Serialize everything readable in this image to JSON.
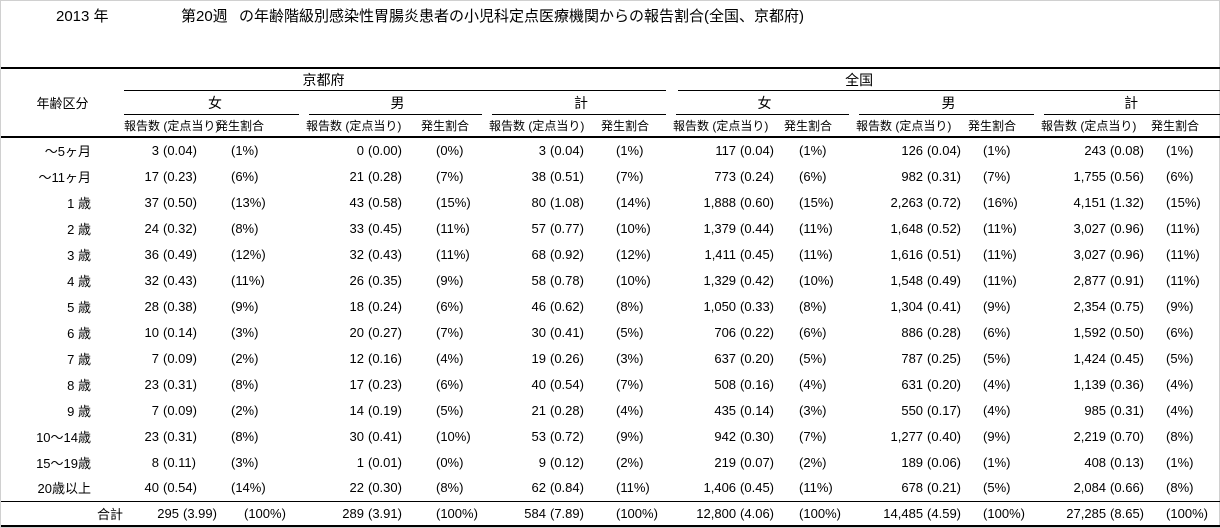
{
  "page": {
    "title": {
      "year": "2013 年",
      "week": "第20週",
      "description": "の年齢階級別感染性胃腸炎患者の小児科定点医療機関からの報告割合(全国、京都府)"
    }
  },
  "table": {
    "age_column_header": "年齢区分",
    "region_headers": [
      "京都府",
      "全国"
    ],
    "gender_headers": [
      "女",
      "男",
      "計"
    ],
    "sub_headers": {
      "count_rate": "報告数 (定点当り)",
      "ratio": "発生割合"
    },
    "group_keys": [
      "kyoto-female",
      "kyoto-male",
      "kyoto-total",
      "national-female",
      "national-male",
      "national-total"
    ],
    "rows": [
      {
        "age": "〜5ヶ月",
        "cells": [
          [
            "3",
            "(0.04)",
            "(1%)"
          ],
          [
            "0",
            "(0.00)",
            "(0%)"
          ],
          [
            "3",
            "(0.04)",
            "(1%)"
          ],
          [
            "117",
            "(0.04)",
            "(1%)"
          ],
          [
            "126",
            "(0.04)",
            "(1%)"
          ],
          [
            "243",
            "(0.08)",
            "(1%)"
          ]
        ]
      },
      {
        "age": "〜11ヶ月",
        "cells": [
          [
            "17",
            "(0.23)",
            "(6%)"
          ],
          [
            "21",
            "(0.28)",
            "(7%)"
          ],
          [
            "38",
            "(0.51)",
            "(7%)"
          ],
          [
            "773",
            "(0.24)",
            "(6%)"
          ],
          [
            "982",
            "(0.31)",
            "(7%)"
          ],
          [
            "1,755",
            "(0.56)",
            "(6%)"
          ]
        ]
      },
      {
        "age": "1 歳",
        "cells": [
          [
            "37",
            "(0.50)",
            "(13%)"
          ],
          [
            "43",
            "(0.58)",
            "(15%)"
          ],
          [
            "80",
            "(1.08)",
            "(14%)"
          ],
          [
            "1,888",
            "(0.60)",
            "(15%)"
          ],
          [
            "2,263",
            "(0.72)",
            "(16%)"
          ],
          [
            "4,151",
            "(1.32)",
            "(15%)"
          ]
        ]
      },
      {
        "age": "2 歳",
        "cells": [
          [
            "24",
            "(0.32)",
            "(8%)"
          ],
          [
            "33",
            "(0.45)",
            "(11%)"
          ],
          [
            "57",
            "(0.77)",
            "(10%)"
          ],
          [
            "1,379",
            "(0.44)",
            "(11%)"
          ],
          [
            "1,648",
            "(0.52)",
            "(11%)"
          ],
          [
            "3,027",
            "(0.96)",
            "(11%)"
          ]
        ]
      },
      {
        "age": "3 歳",
        "cells": [
          [
            "36",
            "(0.49)",
            "(12%)"
          ],
          [
            "32",
            "(0.43)",
            "(11%)"
          ],
          [
            "68",
            "(0.92)",
            "(12%)"
          ],
          [
            "1,411",
            "(0.45)",
            "(11%)"
          ],
          [
            "1,616",
            "(0.51)",
            "(11%)"
          ],
          [
            "3,027",
            "(0.96)",
            "(11%)"
          ]
        ]
      },
      {
        "age": "4 歳",
        "cells": [
          [
            "32",
            "(0.43)",
            "(11%)"
          ],
          [
            "26",
            "(0.35)",
            "(9%)"
          ],
          [
            "58",
            "(0.78)",
            "(10%)"
          ],
          [
            "1,329",
            "(0.42)",
            "(10%)"
          ],
          [
            "1,548",
            "(0.49)",
            "(11%)"
          ],
          [
            "2,877",
            "(0.91)",
            "(11%)"
          ]
        ]
      },
      {
        "age": "5 歳",
        "cells": [
          [
            "28",
            "(0.38)",
            "(9%)"
          ],
          [
            "18",
            "(0.24)",
            "(6%)"
          ],
          [
            "46",
            "(0.62)",
            "(8%)"
          ],
          [
            "1,050",
            "(0.33)",
            "(8%)"
          ],
          [
            "1,304",
            "(0.41)",
            "(9%)"
          ],
          [
            "2,354",
            "(0.75)",
            "(9%)"
          ]
        ]
      },
      {
        "age": "6 歳",
        "cells": [
          [
            "10",
            "(0.14)",
            "(3%)"
          ],
          [
            "20",
            "(0.27)",
            "(7%)"
          ],
          [
            "30",
            "(0.41)",
            "(5%)"
          ],
          [
            "706",
            "(0.22)",
            "(6%)"
          ],
          [
            "886",
            "(0.28)",
            "(6%)"
          ],
          [
            "1,592",
            "(0.50)",
            "(6%)"
          ]
        ]
      },
      {
        "age": "7 歳",
        "cells": [
          [
            "7",
            "(0.09)",
            "(2%)"
          ],
          [
            "12",
            "(0.16)",
            "(4%)"
          ],
          [
            "19",
            "(0.26)",
            "(3%)"
          ],
          [
            "637",
            "(0.20)",
            "(5%)"
          ],
          [
            "787",
            "(0.25)",
            "(5%)"
          ],
          [
            "1,424",
            "(0.45)",
            "(5%)"
          ]
        ]
      },
      {
        "age": "8 歳",
        "cells": [
          [
            "23",
            "(0.31)",
            "(8%)"
          ],
          [
            "17",
            "(0.23)",
            "(6%)"
          ],
          [
            "40",
            "(0.54)",
            "(7%)"
          ],
          [
            "508",
            "(0.16)",
            "(4%)"
          ],
          [
            "631",
            "(0.20)",
            "(4%)"
          ],
          [
            "1,139",
            "(0.36)",
            "(4%)"
          ]
        ]
      },
      {
        "age": "9 歳",
        "cells": [
          [
            "7",
            "(0.09)",
            "(2%)"
          ],
          [
            "14",
            "(0.19)",
            "(5%)"
          ],
          [
            "21",
            "(0.28)",
            "(4%)"
          ],
          [
            "435",
            "(0.14)",
            "(3%)"
          ],
          [
            "550",
            "(0.17)",
            "(4%)"
          ],
          [
            "985",
            "(0.31)",
            "(4%)"
          ]
        ]
      },
      {
        "age": "10〜14歳",
        "cells": [
          [
            "23",
            "(0.31)",
            "(8%)"
          ],
          [
            "30",
            "(0.41)",
            "(10%)"
          ],
          [
            "53",
            "(0.72)",
            "(9%)"
          ],
          [
            "942",
            "(0.30)",
            "(7%)"
          ],
          [
            "1,277",
            "(0.40)",
            "(9%)"
          ],
          [
            "2,219",
            "(0.70)",
            "(8%)"
          ]
        ]
      },
      {
        "age": "15〜19歳",
        "cells": [
          [
            "8",
            "(0.11)",
            "(3%)"
          ],
          [
            "1",
            "(0.01)",
            "(0%)"
          ],
          [
            "9",
            "(0.12)",
            "(2%)"
          ],
          [
            "219",
            "(0.07)",
            "(2%)"
          ],
          [
            "189",
            "(0.06)",
            "(1%)"
          ],
          [
            "408",
            "(0.13)",
            "(1%)"
          ]
        ]
      },
      {
        "age": "20歳以上",
        "cells": [
          [
            "40",
            "(0.54)",
            "(14%)"
          ],
          [
            "22",
            "(0.30)",
            "(8%)"
          ],
          [
            "62",
            "(0.84)",
            "(11%)"
          ],
          [
            "1,406",
            "(0.45)",
            "(11%)"
          ],
          [
            "678",
            "(0.21)",
            "(5%)"
          ],
          [
            "2,084",
            "(0.66)",
            "(8%)"
          ]
        ]
      }
    ],
    "total_row": {
      "age": "合計",
      "cells": [
        [
          "295",
          "(3.99)",
          "(100%)"
        ],
        [
          "289",
          "(3.91)",
          "(100%)"
        ],
        [
          "584",
          "(7.89)",
          "(100%)"
        ],
        [
          "12,800",
          "(4.06)",
          "(100%)"
        ],
        [
          "14,485",
          "(4.59)",
          "(100%)"
        ],
        [
          "27,285",
          "(8.65)",
          "(100%)"
        ]
      ]
    }
  }
}
